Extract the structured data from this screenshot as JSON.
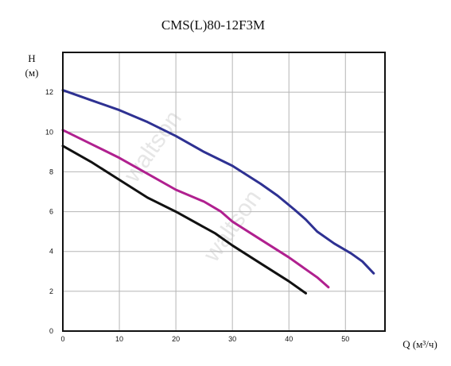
{
  "chart_data": {
    "type": "line",
    "title": "CMS(L)80-12F3M",
    "ylabel": "H",
    "ylabel_unit": "(м)",
    "xlabel": "Q (м³/ч)",
    "xlim": [
      0,
      57
    ],
    "ylim": [
      0,
      14
    ],
    "xticks": [
      0,
      10,
      20,
      30,
      40,
      50
    ],
    "yticks": [
      0,
      2,
      4,
      6,
      8,
      10,
      12
    ],
    "grid": true,
    "legend": "none",
    "watermark": "waltson",
    "series": [
      {
        "color": "#2e3192",
        "points": [
          [
            0,
            12.1
          ],
          [
            5,
            11.6
          ],
          [
            10,
            11.1
          ],
          [
            15,
            10.5
          ],
          [
            20,
            9.8
          ],
          [
            25,
            9.0
          ],
          [
            30,
            8.3
          ],
          [
            35,
            7.4
          ],
          [
            38,
            6.8
          ],
          [
            41,
            6.1
          ],
          [
            43,
            5.6
          ],
          [
            45,
            5.0
          ],
          [
            48,
            4.4
          ],
          [
            51,
            3.9
          ],
          [
            53,
            3.5
          ],
          [
            55,
            2.9
          ]
        ]
      },
      {
        "color": "#b0208f",
        "points": [
          [
            0,
            10.1
          ],
          [
            5,
            9.4
          ],
          [
            10,
            8.7
          ],
          [
            15,
            7.9
          ],
          [
            20,
            7.1
          ],
          [
            25,
            6.5
          ],
          [
            28,
            6.0
          ],
          [
            30,
            5.5
          ],
          [
            35,
            4.6
          ],
          [
            40,
            3.7
          ],
          [
            45,
            2.7
          ],
          [
            47,
            2.2
          ]
        ]
      },
      {
        "color": "#111111",
        "points": [
          [
            0,
            9.3
          ],
          [
            5,
            8.5
          ],
          [
            10,
            7.6
          ],
          [
            15,
            6.7
          ],
          [
            20,
            6.0
          ],
          [
            27,
            4.9
          ],
          [
            30,
            4.3
          ],
          [
            35,
            3.4
          ],
          [
            40,
            2.5
          ],
          [
            43,
            1.9
          ]
        ]
      }
    ]
  }
}
